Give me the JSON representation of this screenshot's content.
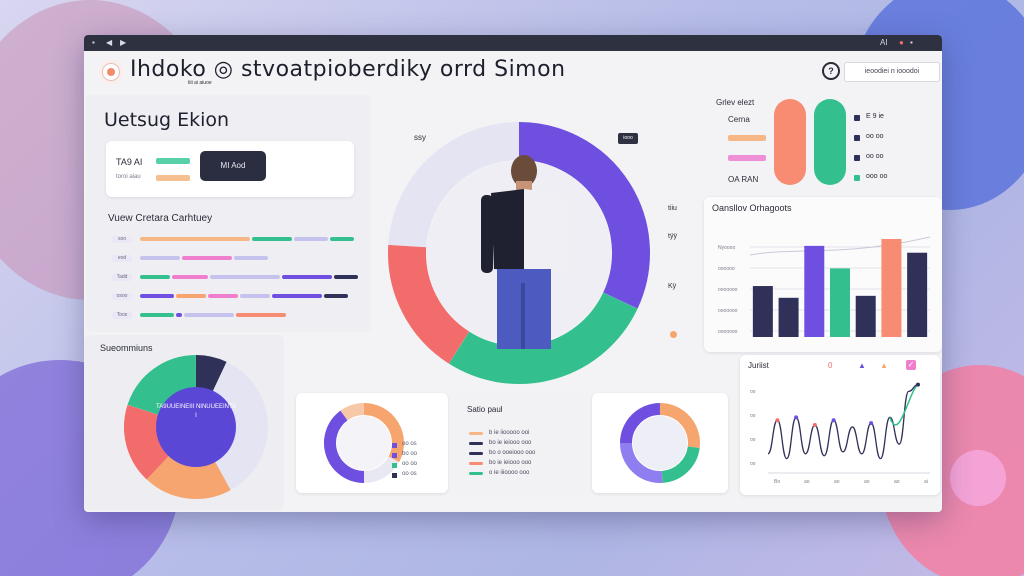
{
  "window": {
    "title": "Ihdoko ◎ stvoatpioberdiky orrd Simon",
    "subtitle": "tiii ai aiuoe",
    "header_button": "ieoodiei n iooodoi",
    "titlebar_right": "AI"
  },
  "profile_card": {
    "heading": "Uetsug Ekion",
    "label": "TA9 AI",
    "sublabel": "toroi aiau",
    "button": "MI Aod"
  },
  "category_list": {
    "title": "Vuew Cretara Carhtuey",
    "rows": [
      {
        "tag": "soo"
      },
      {
        "tag": "eod"
      },
      {
        "tag": "Tadd"
      },
      {
        "tag": "osoo"
      },
      {
        "tag": "Toos"
      }
    ]
  },
  "segments": {
    "title": "Sueommiuns",
    "center_text": "TA9UUEINEIII NINUUEEINTIII"
  },
  "center": {
    "label_top": "ssy",
    "badge": "iooo",
    "side_labels": [
      "tiiu",
      "tÿÿ",
      "Kÿ"
    ]
  },
  "mini_list": {
    "labels": [
      "oo os",
      "bo oo",
      "oo oo",
      "oo os"
    ]
  },
  "ratio_panel": {
    "title": "Satio paul",
    "rows": [
      "b ie iiooooo ooi",
      "bo ie ieiooo ooo",
      "bo o ooeiooo ooo",
      "bo ie ieiooo ooo",
      "o ie iiioooo ooo"
    ]
  },
  "legend_panel": {
    "title": "Grlev elezt",
    "items": [
      {
        "label": "Cerna",
        "value": "E 9 ie"
      },
      {
        "label": "",
        "value": "oo oo"
      },
      {
        "label": "",
        "value": "oo oo"
      },
      {
        "label": "OA RAN",
        "value": "ooo oo"
      }
    ]
  },
  "bar_chart": {
    "title": "Oansllov Orhagoots",
    "y_labels": [
      "Nyoooo",
      "oooooo",
      "ooooooo",
      "ooooooo",
      "ooooooo"
    ]
  },
  "line_chart": {
    "title": "Juriist",
    "x_labels": [
      "Bo",
      "ao",
      "ao",
      "ao",
      "ao",
      "ai"
    ],
    "y_labels": [
      "oo",
      "oo",
      "oo",
      "oo"
    ],
    "icons": [
      "0",
      "▲",
      "▲",
      "✓"
    ]
  },
  "colors": {
    "purple": "#6f4fe0",
    "green": "#33c08e",
    "coral": "#f26c6c",
    "orange": "#f6a56e",
    "salmon": "#f78c73",
    "navy": "#2f3158",
    "lavender": "#c6c2ee",
    "pink": "#ef7fcd"
  },
  "chart_data": [
    {
      "type": "bar",
      "categories": [
        "1",
        "2",
        "3",
        "4",
        "5",
        "6",
        "7"
      ],
      "values": [
        52,
        40,
        93,
        70,
        42,
        100,
        86
      ],
      "colors": [
        "#2f3158",
        "#2f3158",
        "#6f4fe0",
        "#33c08e",
        "#2f3158",
        "#f78c73",
        "#2f3158"
      ],
      "ylim": [
        0,
        100
      ]
    },
    {
      "type": "line",
      "x": [
        0,
        1,
        2,
        3,
        4,
        5,
        6,
        7,
        8,
        9,
        10,
        11,
        12,
        13,
        14,
        15,
        16
      ],
      "y": [
        20,
        55,
        15,
        58,
        20,
        50,
        18,
        55,
        22,
        48,
        20,
        52,
        15,
        58,
        30,
        85,
        92
      ],
      "ylim": [
        0,
        100
      ]
    },
    {
      "type": "pie",
      "name": "center donut",
      "values": [
        32,
        27,
        17,
        24
      ],
      "colors": [
        "#6f4fe0",
        "#33c08e",
        "#f26c6c",
        "#e4e4f2"
      ]
    },
    {
      "type": "pie",
      "name": "segments donut",
      "values": [
        7,
        35,
        20,
        18,
        20
      ],
      "colors": [
        "#2f3158",
        "#e4e4f2",
        "#f6a56e",
        "#f26c6c",
        "#33c08e"
      ]
    },
    {
      "type": "pie",
      "name": "small donut 1",
      "values": [
        33,
        17,
        40,
        10
      ],
      "colors": [
        "#f6a56e",
        "#e8e8f3",
        "#6f4fe0",
        "#f6c8a8"
      ]
    },
    {
      "type": "pie",
      "name": "small donut 2",
      "values": [
        27,
        22,
        26,
        25
      ],
      "colors": [
        "#f6a56e",
        "#33c08e",
        "#8f7ef0",
        "#6f4fe0"
      ]
    }
  ]
}
